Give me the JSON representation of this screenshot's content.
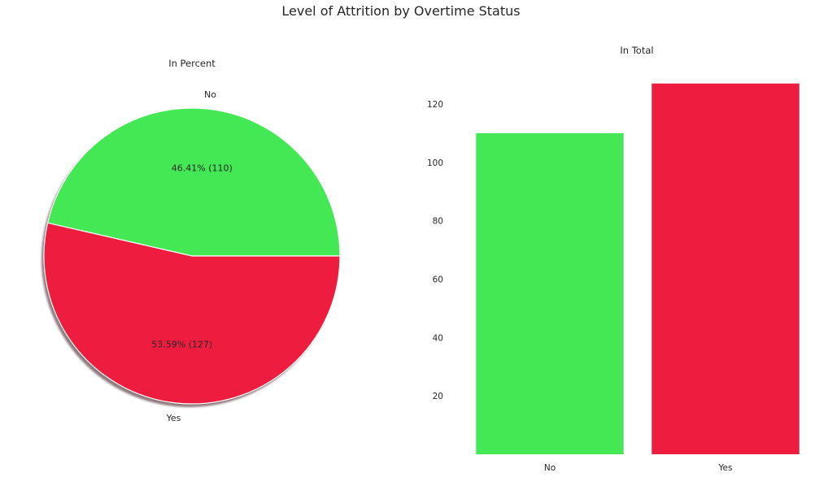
{
  "figure": {
    "title": "Level of Attrition by Overtime Status"
  },
  "chart_data": [
    {
      "type": "pie",
      "title": "In Percent",
      "categories": [
        "No",
        "Yes"
      ],
      "values": [
        110,
        127
      ],
      "percent_labels": [
        "46.41%  (110)",
        "53.59%  (127)"
      ],
      "colors": [
        "#44e855",
        "#ee1c3f"
      ],
      "shadow": true,
      "grid": false
    },
    {
      "type": "bar",
      "title": "In Total",
      "categories": [
        "No",
        "Yes"
      ],
      "values": [
        110,
        127
      ],
      "colors": [
        "#44e855",
        "#ee1c3f"
      ],
      "yticks": [
        20,
        40,
        60,
        80,
        100,
        120
      ],
      "ylim": [
        0,
        130
      ],
      "xlabel": "",
      "ylabel": "",
      "grid": false
    }
  ]
}
